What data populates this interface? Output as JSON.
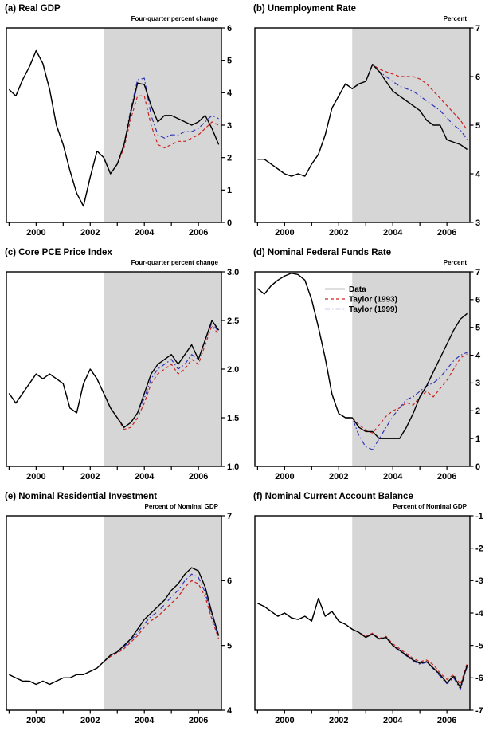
{
  "x_quarters": [
    1999.0,
    1999.25,
    1999.5,
    1999.75,
    2000.0,
    2000.25,
    2000.5,
    2000.75,
    2001.0,
    2001.25,
    2001.5,
    2001.75,
    2002.0,
    2002.25,
    2002.5,
    2002.75,
    2003.0,
    2003.25,
    2003.5,
    2003.75,
    2004.0,
    2004.25,
    2004.5,
    2004.75,
    2005.0,
    2005.25,
    2005.5,
    2005.75,
    2006.0,
    2006.25,
    2006.5,
    2006.75
  ],
  "chart_data": [
    {
      "type": "line",
      "panel": "a",
      "title": "(a) Real GDP",
      "unit": "Four-quarter percent change",
      "xlim": [
        1998.9,
        2006.85
      ],
      "ylim": [
        0,
        6
      ],
      "yticks": [
        0,
        1,
        2,
        3,
        4,
        5,
        6
      ],
      "ytick_labels": [
        "0",
        "1",
        "2",
        "3",
        "4",
        "5",
        "6"
      ],
      "xticks": [
        1999,
        2000,
        2001,
        2002,
        2003,
        2004,
        2005,
        2006
      ],
      "xtick_major": [
        2000,
        2002,
        2004,
        2006
      ],
      "xtick_labels": [
        "2000",
        "2002",
        "2004",
        "2006"
      ],
      "shade_start": 2002.5,
      "shade_color": "#d6d6d6",
      "legend": false,
      "series": [
        {
          "name": "Data",
          "color": "#000000",
          "style": "solid",
          "values": [
            4.1,
            3.9,
            4.4,
            4.8,
            5.3,
            4.9,
            4.1,
            3.0,
            2.4,
            1.6,
            0.9,
            0.5,
            1.4,
            2.2,
            2.0,
            1.5,
            1.8,
            2.4,
            3.4,
            4.3,
            4.25,
            3.6,
            3.1,
            3.3,
            3.3,
            3.2,
            3.1,
            3.0,
            3.1,
            3.3,
            2.9,
            2.4
          ]
        },
        {
          "name": "Taylor (1993)",
          "color": "#cc2222",
          "style": "dashed",
          "values": [
            4.1,
            3.9,
            4.4,
            4.8,
            5.3,
            4.9,
            4.1,
            3.0,
            2.4,
            1.6,
            0.9,
            0.5,
            1.4,
            2.2,
            2.0,
            1.5,
            1.8,
            2.3,
            3.2,
            3.9,
            3.9,
            3.0,
            2.4,
            2.3,
            2.4,
            2.5,
            2.5,
            2.6,
            2.7,
            2.9,
            3.1,
            3.0
          ]
        },
        {
          "name": "Taylor (1999)",
          "color": "#3333bb",
          "style": "dashdot",
          "values": [
            4.1,
            3.9,
            4.4,
            4.8,
            5.3,
            4.9,
            4.1,
            3.0,
            2.4,
            1.6,
            0.9,
            0.5,
            1.4,
            2.2,
            2.0,
            1.5,
            1.8,
            2.4,
            3.5,
            4.4,
            4.45,
            3.3,
            2.7,
            2.6,
            2.7,
            2.7,
            2.8,
            2.8,
            2.9,
            3.1,
            3.3,
            3.2
          ]
        }
      ]
    },
    {
      "type": "line",
      "panel": "b",
      "title": "(b) Unemployment Rate",
      "unit": "Percent",
      "xlim": [
        1998.9,
        2006.85
      ],
      "ylim": [
        3,
        7
      ],
      "yticks": [
        3,
        4,
        5,
        6,
        7
      ],
      "ytick_labels": [
        "3",
        "4",
        "5",
        "6",
        "7"
      ],
      "xticks": [
        1999,
        2000,
        2001,
        2002,
        2003,
        2004,
        2005,
        2006
      ],
      "xtick_major": [
        2000,
        2002,
        2004,
        2006
      ],
      "xtick_labels": [
        "2000",
        "2002",
        "2004",
        "2006"
      ],
      "shade_start": 2002.5,
      "shade_color": "#d6d6d6",
      "legend": false,
      "series": [
        {
          "name": "Data",
          "color": "#000000",
          "style": "solid",
          "values": [
            4.3,
            4.3,
            4.2,
            4.1,
            4.0,
            3.95,
            4.0,
            3.95,
            4.2,
            4.4,
            4.8,
            5.35,
            5.6,
            5.85,
            5.75,
            5.85,
            5.9,
            6.25,
            6.1,
            5.9,
            5.7,
            5.6,
            5.5,
            5.4,
            5.3,
            5.1,
            5.0,
            5.0,
            4.7,
            4.65,
            4.6,
            4.5
          ]
        },
        {
          "name": "Taylor (1993)",
          "color": "#cc2222",
          "style": "dashed",
          "values": [
            4.3,
            4.3,
            4.2,
            4.1,
            4.0,
            3.95,
            4.0,
            3.95,
            4.2,
            4.4,
            4.8,
            5.35,
            5.6,
            5.85,
            5.75,
            5.85,
            5.9,
            6.25,
            6.15,
            6.1,
            6.05,
            6.0,
            6.0,
            6.0,
            5.95,
            5.85,
            5.7,
            5.55,
            5.4,
            5.25,
            5.1,
            4.9
          ]
        },
        {
          "name": "Taylor (1999)",
          "color": "#3333bb",
          "style": "dashdot",
          "values": [
            4.3,
            4.3,
            4.2,
            4.1,
            4.0,
            3.95,
            4.0,
            3.95,
            4.2,
            4.4,
            4.8,
            5.35,
            5.6,
            5.85,
            5.75,
            5.85,
            5.9,
            6.25,
            6.1,
            6.0,
            5.9,
            5.8,
            5.75,
            5.7,
            5.6,
            5.5,
            5.4,
            5.3,
            5.15,
            5.0,
            4.9,
            4.7
          ]
        }
      ]
    },
    {
      "type": "line",
      "panel": "c",
      "title": "(c) Core PCE Price Index",
      "unit": "Four-quarter percent change",
      "xlim": [
        1998.9,
        2006.85
      ],
      "ylim": [
        1.0,
        3.0
      ],
      "yticks": [
        1.0,
        1.5,
        2.0,
        2.5,
        3.0
      ],
      "ytick_labels": [
        "1.0",
        "1.5",
        "2.0",
        "2.5",
        "3.0"
      ],
      "xticks": [
        1999,
        2000,
        2001,
        2002,
        2003,
        2004,
        2005,
        2006
      ],
      "xtick_major": [
        2000,
        2002,
        2004,
        2006
      ],
      "xtick_labels": [
        "2000",
        "2002",
        "2004",
        "2006"
      ],
      "shade_start": 2002.5,
      "shade_color": "#d6d6d6",
      "legend": false,
      "series": [
        {
          "name": "Data",
          "color": "#000000",
          "style": "solid",
          "values": [
            1.75,
            1.65,
            1.75,
            1.85,
            1.95,
            1.9,
            1.95,
            1.9,
            1.85,
            1.6,
            1.55,
            1.85,
            2.0,
            1.9,
            1.75,
            1.6,
            1.5,
            1.4,
            1.45,
            1.55,
            1.75,
            1.95,
            2.05,
            2.1,
            2.15,
            2.05,
            2.15,
            2.25,
            2.1,
            2.3,
            2.5,
            2.4
          ]
        },
        {
          "name": "Taylor (1993)",
          "color": "#cc2222",
          "style": "dashed",
          "values": [
            1.75,
            1.65,
            1.75,
            1.85,
            1.95,
            1.9,
            1.95,
            1.9,
            1.85,
            1.6,
            1.55,
            1.85,
            2.0,
            1.9,
            1.75,
            1.6,
            1.5,
            1.38,
            1.4,
            1.5,
            1.65,
            1.85,
            1.95,
            2.0,
            2.05,
            1.95,
            2.0,
            2.1,
            2.05,
            2.25,
            2.45,
            2.35
          ]
        },
        {
          "name": "Taylor (1999)",
          "color": "#3333bb",
          "style": "dashdot",
          "values": [
            1.75,
            1.65,
            1.75,
            1.85,
            1.95,
            1.9,
            1.95,
            1.9,
            1.85,
            1.6,
            1.55,
            1.85,
            2.0,
            1.9,
            1.75,
            1.6,
            1.5,
            1.4,
            1.45,
            1.55,
            1.7,
            1.9,
            2.0,
            2.05,
            2.1,
            2.0,
            2.05,
            2.15,
            2.1,
            2.3,
            2.48,
            2.38
          ]
        }
      ]
    },
    {
      "type": "line",
      "panel": "d",
      "title": "(d) Nominal Federal Funds Rate",
      "unit": "Percent",
      "xlim": [
        1998.9,
        2006.85
      ],
      "ylim": [
        0,
        7
      ],
      "yticks": [
        0,
        1,
        2,
        3,
        4,
        5,
        6,
        7
      ],
      "ytick_labels": [
        "0",
        "1",
        "2",
        "3",
        "4",
        "5",
        "6",
        "7"
      ],
      "xticks": [
        1999,
        2000,
        2001,
        2002,
        2003,
        2004,
        2005,
        2006
      ],
      "xtick_major": [
        2000,
        2002,
        2004,
        2006
      ],
      "xtick_labels": [
        "2000",
        "2002",
        "2004",
        "2006"
      ],
      "shade_start": 2002.5,
      "shade_color": "#d6d6d6",
      "legend": true,
      "legend_position": "upper-center-left",
      "series": [
        {
          "name": "Data",
          "color": "#000000",
          "style": "solid",
          "values": [
            6.4,
            6.2,
            6.5,
            6.7,
            6.85,
            6.95,
            6.9,
            6.7,
            6.0,
            5.0,
            3.9,
            2.6,
            1.9,
            1.75,
            1.75,
            1.4,
            1.25,
            1.25,
            1.0,
            1.0,
            1.0,
            1.0,
            1.4,
            1.9,
            2.5,
            2.9,
            3.4,
            3.9,
            4.4,
            4.9,
            5.3,
            5.5
          ]
        },
        {
          "name": "Taylor (1993)",
          "color": "#cc2222",
          "style": "dashed",
          "values": [
            6.4,
            6.2,
            6.5,
            6.7,
            6.85,
            6.95,
            6.9,
            6.7,
            6.0,
            5.0,
            3.9,
            2.6,
            1.9,
            1.75,
            1.75,
            1.5,
            1.3,
            1.2,
            1.5,
            1.8,
            2.0,
            2.1,
            2.3,
            2.2,
            2.5,
            2.7,
            2.5,
            2.8,
            3.1,
            3.5,
            3.9,
            4.05
          ]
        },
        {
          "name": "Taylor (1999)",
          "color": "#3333bb",
          "style": "dashdot",
          "values": [
            6.4,
            6.2,
            6.5,
            6.7,
            6.85,
            6.95,
            6.9,
            6.7,
            6.0,
            5.0,
            3.9,
            2.6,
            1.9,
            1.75,
            1.75,
            1.1,
            0.7,
            0.6,
            1.0,
            1.4,
            1.8,
            2.1,
            2.4,
            2.5,
            2.7,
            2.9,
            3.0,
            3.2,
            3.5,
            3.8,
            4.0,
            4.1
          ]
        }
      ]
    },
    {
      "type": "line",
      "panel": "e",
      "title": "(e) Nominal Residential Investment",
      "unit": "Percent of Nominal GDP",
      "xlim": [
        1998.9,
        2006.85
      ],
      "ylim": [
        4,
        7
      ],
      "yticks": [
        4,
        5,
        6,
        7
      ],
      "ytick_labels": [
        "4",
        "5",
        "6",
        "7"
      ],
      "xticks": [
        1999,
        2000,
        2001,
        2002,
        2003,
        2004,
        2005,
        2006
      ],
      "xtick_major": [
        2000,
        2002,
        2004,
        2006
      ],
      "xtick_labels": [
        "2000",
        "2002",
        "2004",
        "2006"
      ],
      "shade_start": 2002.5,
      "shade_color": "#d6d6d6",
      "legend": false,
      "series": [
        {
          "name": "Data",
          "color": "#000000",
          "style": "solid",
          "values": [
            4.55,
            4.5,
            4.45,
            4.45,
            4.4,
            4.45,
            4.4,
            4.45,
            4.5,
            4.5,
            4.55,
            4.55,
            4.6,
            4.65,
            4.75,
            4.85,
            4.9,
            5.0,
            5.1,
            5.25,
            5.4,
            5.5,
            5.6,
            5.7,
            5.85,
            5.95,
            6.1,
            6.2,
            6.15,
            5.9,
            5.5,
            5.15
          ]
        },
        {
          "name": "Taylor (1993)",
          "color": "#cc2222",
          "style": "dashed",
          "values": [
            4.55,
            4.5,
            4.45,
            4.45,
            4.4,
            4.45,
            4.4,
            4.45,
            4.5,
            4.5,
            4.55,
            4.55,
            4.6,
            4.65,
            4.75,
            4.83,
            4.88,
            4.95,
            5.05,
            5.15,
            5.28,
            5.38,
            5.45,
            5.55,
            5.65,
            5.75,
            5.9,
            6.0,
            5.95,
            5.75,
            5.4,
            5.1
          ]
        },
        {
          "name": "Taylor (1999)",
          "color": "#3333bb",
          "style": "dashdot",
          "values": [
            4.55,
            4.5,
            4.45,
            4.45,
            4.4,
            4.45,
            4.4,
            4.45,
            4.5,
            4.5,
            4.55,
            4.55,
            4.6,
            4.65,
            4.75,
            4.84,
            4.9,
            4.98,
            5.08,
            5.2,
            5.33,
            5.45,
            5.52,
            5.63,
            5.75,
            5.85,
            6.0,
            6.1,
            6.05,
            5.82,
            5.45,
            5.12
          ]
        }
      ]
    },
    {
      "type": "line",
      "panel": "f",
      "title": "(f) Nominal Current Account Balance",
      "unit": "Percent of Nominal GDP",
      "xlim": [
        1998.9,
        2006.85
      ],
      "ylim": [
        -7,
        -1
      ],
      "yticks": [
        -7,
        -6,
        -5,
        -4,
        -3,
        -2,
        -1
      ],
      "ytick_labels": [
        "-7",
        "-6",
        "-5",
        "-4",
        "-3",
        "-2",
        "-1"
      ],
      "xticks": [
        1999,
        2000,
        2001,
        2002,
        2003,
        2004,
        2005,
        2006
      ],
      "xtick_major": [
        2000,
        2002,
        2004,
        2006
      ],
      "xtick_labels": [
        "2000",
        "2002",
        "2004",
        "2006"
      ],
      "shade_start": 2002.5,
      "shade_color": "#d6d6d6",
      "legend": false,
      "series": [
        {
          "name": "Data",
          "color": "#000000",
          "style": "solid",
          "values": [
            -3.7,
            -3.8,
            -3.95,
            -4.1,
            -4.0,
            -4.15,
            -4.2,
            -4.1,
            -4.25,
            -3.55,
            -4.1,
            -3.95,
            -4.25,
            -4.35,
            -4.5,
            -4.6,
            -4.75,
            -4.65,
            -4.8,
            -4.75,
            -5.0,
            -5.15,
            -5.3,
            -5.45,
            -5.55,
            -5.5,
            -5.7,
            -5.9,
            -6.15,
            -5.95,
            -6.3,
            -5.6
          ]
        },
        {
          "name": "Taylor (1993)",
          "color": "#cc2222",
          "style": "dashed",
          "values": [
            -3.7,
            -3.8,
            -3.95,
            -4.1,
            -4.0,
            -4.15,
            -4.2,
            -4.1,
            -4.25,
            -3.55,
            -4.1,
            -3.95,
            -4.25,
            -4.35,
            -4.5,
            -4.6,
            -4.72,
            -4.62,
            -4.78,
            -4.72,
            -4.95,
            -5.1,
            -5.25,
            -5.4,
            -5.5,
            -5.45,
            -5.6,
            -5.85,
            -6.05,
            -5.9,
            -6.2,
            -5.55
          ]
        },
        {
          "name": "Taylor (1999)",
          "color": "#3333bb",
          "style": "dashdot",
          "values": [
            -3.7,
            -3.8,
            -3.95,
            -4.1,
            -4.0,
            -4.15,
            -4.2,
            -4.1,
            -4.25,
            -3.55,
            -4.1,
            -3.95,
            -4.25,
            -4.35,
            -4.5,
            -4.6,
            -4.75,
            -4.65,
            -4.8,
            -4.76,
            -5.0,
            -5.18,
            -5.32,
            -5.48,
            -5.58,
            -5.52,
            -5.72,
            -5.95,
            -6.18,
            -6.0,
            -6.35,
            -5.65
          ]
        }
      ]
    }
  ]
}
